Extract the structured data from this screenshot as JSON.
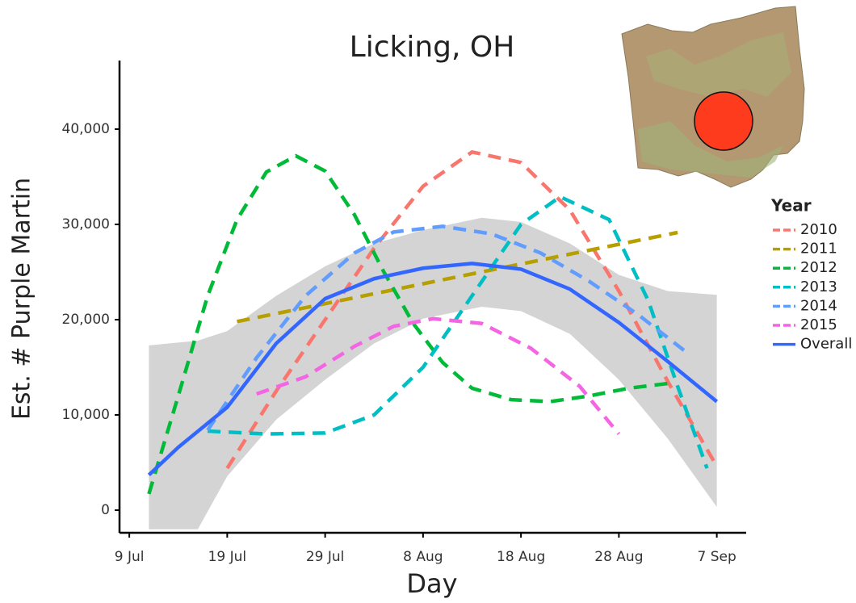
{
  "chart_data": {
    "type": "line",
    "title": "Licking, OH",
    "x_label": "Day",
    "y_label": "Est. # Purple Martin",
    "legend_title": "Year",
    "legend_position": "right",
    "xlim": [
      "8 Jul",
      "10 Sep"
    ],
    "xticks": [
      "9 Jul",
      "19 Jul",
      "29 Jul",
      "8 Aug",
      "18 Aug",
      "28 Aug",
      "7 Sep"
    ],
    "ylim": [
      -2373,
      47200
    ],
    "yticks": [
      0,
      {
        "value": 10000,
        "label": "10,000"
      },
      {
        "value": 20000,
        "label": "20,000"
      },
      {
        "value": 30000,
        "label": "30,000"
      },
      {
        "value": 40000,
        "label": "40,000"
      }
    ],
    "ribbon": {
      "color": "#d4d4d4",
      "x": [
        "11 Jul",
        "16 Jul",
        "19 Jul",
        "24 Jul",
        "29 Jul",
        "3 Aug",
        "8 Aug",
        "14 Aug",
        "18 Aug",
        "23 Aug",
        "28 Aug",
        "2 Sep",
        "7 Sep"
      ],
      "lower": [
        -2000,
        -2000,
        3560,
        9500,
        13700,
        17500,
        20100,
        21350,
        20900,
        18500,
        13700,
        7500,
        340
      ],
      "upper": [
        17300,
        17800,
        18800,
        22500,
        25600,
        28000,
        29400,
        30700,
        30250,
        28000,
        24700,
        23000,
        22600
      ]
    },
    "series": [
      {
        "name": "2010",
        "color": "#F8766D",
        "dashed": true,
        "x": [
          "19 Jul",
          "24 Jul",
          "29 Jul",
          "3 Aug",
          "8 Aug",
          "13 Aug",
          "18 Aug",
          "23 Aug",
          "28 Aug",
          "2 Sep",
          "7 Sep"
        ],
        "values": [
          4400,
          12500,
          20000,
          27500,
          34000,
          37600,
          36500,
          31500,
          23000,
          13500,
          4600
        ]
      },
      {
        "name": "2011",
        "color": "#B79F00",
        "dashed": true,
        "x": [
          "20 Jul",
          "12 Aug",
          "3 Sep"
        ],
        "values": [
          19800,
          24600,
          29150
        ]
      },
      {
        "name": "2012",
        "color": "#00BA38",
        "dashed": true,
        "x": [
          "11 Jul",
          "14 Jul",
          "17 Jul",
          "20 Jul",
          "23 Jul",
          "26 Jul",
          "29 Jul",
          "1 Aug",
          "4 Aug",
          "7 Aug",
          "10 Aug",
          "13 Aug",
          "17 Aug",
          "21 Aug",
          "25 Aug",
          "29 Aug",
          "2 Sep"
        ],
        "values": [
          1700,
          12000,
          22500,
          30500,
          35500,
          37200,
          35600,
          31000,
          25000,
          19600,
          15500,
          12800,
          11600,
          11400,
          12000,
          12800,
          13300
        ]
      },
      {
        "name": "2013",
        "color": "#00BFC4",
        "dashed": true,
        "x": [
          "17 Jul",
          "23 Jul",
          "29 Jul",
          "3 Aug",
          "8 Aug",
          "13 Aug",
          "18 Aug",
          "22 Aug",
          "27 Aug",
          "31 Aug",
          "3 Sep",
          "6 Sep"
        ],
        "values": [
          8300,
          8000,
          8100,
          10000,
          15000,
          22500,
          30000,
          32900,
          30500,
          22000,
          13000,
          4400
        ]
      },
      {
        "name": "2014",
        "color": "#619CFF",
        "dashed": true,
        "x": [
          "17 Jul",
          "22 Jul",
          "27 Jul",
          "1 Aug",
          "5 Aug",
          "10 Aug",
          "15 Aug",
          "20 Aug",
          "25 Aug",
          "30 Aug",
          "4 Sep"
        ],
        "values": [
          8400,
          16000,
          22500,
          27000,
          29200,
          29800,
          29000,
          27000,
          24000,
          20500,
          16500
        ]
      },
      {
        "name": "2015",
        "color": "#F564E3",
        "dashed": true,
        "x": [
          "22 Jul",
          "27 Jul",
          "1 Aug",
          "5 Aug",
          "9 Aug",
          "14 Aug",
          "19 Aug",
          "24 Aug",
          "28 Aug"
        ],
        "values": [
          12200,
          14000,
          17200,
          19300,
          20100,
          19600,
          17000,
          13000,
          8000
        ]
      },
      {
        "name": "Overall",
        "color": "#3366FF",
        "dashed": false,
        "x": [
          "11 Jul",
          "14 Jul",
          "19 Jul",
          "24 Jul",
          "29 Jul",
          "3 Aug",
          "8 Aug",
          "13 Aug",
          "18 Aug",
          "23 Aug",
          "28 Aug",
          "2 Sep",
          "7 Sep"
        ],
        "values": [
          3700,
          6600,
          10800,
          17500,
          22200,
          24300,
          25400,
          25900,
          25300,
          23200,
          19700,
          15600,
          11400
        ]
      }
    ]
  }
}
